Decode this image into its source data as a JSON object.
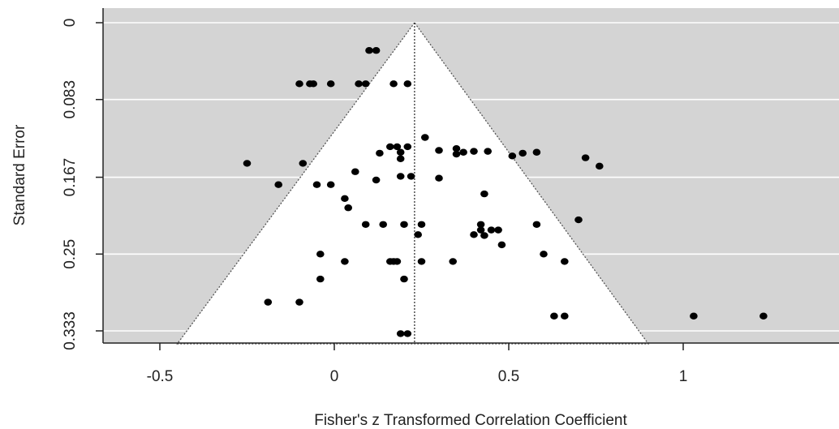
{
  "chart_data": {
    "type": "scatter",
    "title": "",
    "xlabel": "Fisher's z Transformed Correlation Coefficient",
    "ylabel": "Standard Error",
    "xlim": [
      -0.66,
      1.4
    ],
    "ylim": [
      0.347,
      0.0
    ],
    "y_reversed": true,
    "x_ticks": [
      -0.5,
      0,
      0.5,
      1
    ],
    "x_tick_labels": [
      "-0.5",
      "0",
      "0.5",
      "1"
    ],
    "y_ticks": [
      0,
      0.083,
      0.167,
      0.25,
      0.333
    ],
    "y_tick_labels": [
      "0",
      "0.083",
      "0.167",
      "0.25",
      "0.333"
    ],
    "grid": true,
    "background_color": "#d4d4d4",
    "funnel_fill": "#ffffff",
    "point_color": "#000000",
    "summary_effect": 0.23,
    "funnel": {
      "apex": [
        0.23,
        0.0
      ],
      "base_left": -0.45,
      "base_right": 0.9,
      "base_se": 0.347
    },
    "points": [
      [
        0.1,
        0.03
      ],
      [
        0.12,
        0.03
      ],
      [
        -0.1,
        0.066
      ],
      [
        -0.07,
        0.066
      ],
      [
        -0.06,
        0.066
      ],
      [
        -0.01,
        0.066
      ],
      [
        0.07,
        0.066
      ],
      [
        0.09,
        0.066
      ],
      [
        0.17,
        0.066
      ],
      [
        0.21,
        0.066
      ],
      [
        0.26,
        0.124
      ],
      [
        0.16,
        0.134
      ],
      [
        0.18,
        0.134
      ],
      [
        0.21,
        0.134
      ],
      [
        0.13,
        0.141
      ],
      [
        0.19,
        0.14
      ],
      [
        0.19,
        0.147
      ],
      [
        0.3,
        0.138
      ],
      [
        0.35,
        0.136
      ],
      [
        0.35,
        0.142
      ],
      [
        0.37,
        0.14
      ],
      [
        0.4,
        0.139
      ],
      [
        0.44,
        0.139
      ],
      [
        0.51,
        0.144
      ],
      [
        0.54,
        0.141
      ],
      [
        0.58,
        0.14
      ],
      [
        0.72,
        0.146
      ],
      [
        0.76,
        0.155
      ],
      [
        -0.25,
        0.152
      ],
      [
        -0.09,
        0.152
      ],
      [
        0.06,
        0.161
      ],
      [
        0.12,
        0.17
      ],
      [
        0.19,
        0.166
      ],
      [
        0.22,
        0.166
      ],
      [
        0.3,
        0.168
      ],
      [
        -0.16,
        0.175
      ],
      [
        -0.05,
        0.175
      ],
      [
        -0.01,
        0.175
      ],
      [
        0.43,
        0.185
      ],
      [
        0.03,
        0.19
      ],
      [
        0.04,
        0.2
      ],
      [
        0.09,
        0.218
      ],
      [
        0.14,
        0.218
      ],
      [
        0.2,
        0.218
      ],
      [
        0.25,
        0.218
      ],
      [
        0.42,
        0.218
      ],
      [
        0.58,
        0.218
      ],
      [
        0.7,
        0.213
      ],
      [
        0.24,
        0.229
      ],
      [
        0.4,
        0.229
      ],
      [
        0.42,
        0.224
      ],
      [
        0.43,
        0.23
      ],
      [
        0.45,
        0.224
      ],
      [
        0.47,
        0.224
      ],
      [
        0.48,
        0.24
      ],
      [
        -0.04,
        0.25
      ],
      [
        0.6,
        0.25
      ],
      [
        0.03,
        0.258
      ],
      [
        0.16,
        0.258
      ],
      [
        0.17,
        0.258
      ],
      [
        0.18,
        0.258
      ],
      [
        0.25,
        0.258
      ],
      [
        0.34,
        0.258
      ],
      [
        0.66,
        0.258
      ],
      [
        -0.04,
        0.277
      ],
      [
        0.2,
        0.277
      ],
      [
        -0.19,
        0.302
      ],
      [
        -0.1,
        0.302
      ],
      [
        0.63,
        0.317
      ],
      [
        0.66,
        0.317
      ],
      [
        1.03,
        0.317
      ],
      [
        1.23,
        0.317
      ],
      [
        0.19,
        0.336
      ],
      [
        0.21,
        0.336
      ]
    ]
  }
}
